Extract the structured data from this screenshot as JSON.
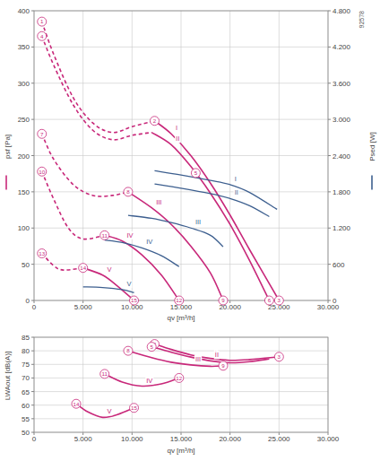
{
  "chart_data": [
    {
      "type": "line",
      "subtitle": "92578",
      "x_label": "qv [m³/h]",
      "y_label": "psf [Pa]",
      "y2_label": "Psed [W]",
      "xlim": [
        0,
        30000
      ],
      "xticks": [
        0,
        {
          "value": 5000,
          "label": "5.000"
        },
        {
          "value": 10000,
          "label": "10.000"
        },
        {
          "value": 15000,
          "label": "15.000"
        },
        {
          "value": 20000,
          "label": "20.000"
        },
        {
          "value": 25000,
          "label": "25.000"
        },
        {
          "value": 30000,
          "label": "30.000"
        }
      ],
      "ylim": [
        0,
        400
      ],
      "yticks": [
        0,
        50,
        100,
        150,
        200,
        250,
        300,
        350,
        400
      ],
      "y2lim": [
        0,
        4800
      ],
      "y2ticks": [
        0,
        600,
        {
          "value": 1200,
          "label": "1.200"
        },
        {
          "value": 1800,
          "label": "1.800"
        },
        {
          "value": 2400,
          "label": "2.400"
        },
        {
          "value": 3000,
          "label": "3.000"
        },
        {
          "value": 3600,
          "label": "3.600"
        },
        {
          "value": 4200,
          "label": "4.200"
        },
        {
          "value": 4800,
          "label": "4.800"
        }
      ],
      "grid": true,
      "series": [
        {
          "x": [
            800,
            2000,
            4000,
            6000,
            8000,
            10000,
            12300
          ],
          "values": [
            385,
            340,
            280,
            245,
            232,
            240,
            248
          ],
          "color": "#c8287a",
          "line_style": "dashed"
        },
        {
          "name": "I",
          "x": [
            12300,
            14000,
            16000,
            18000,
            20000,
            22000,
            25000
          ],
          "values": [
            248,
            230,
            200,
            162,
            118,
            70,
            0
          ],
          "color": "#c8287a",
          "line_style": "solid"
        },
        {
          "x": [
            800,
            2000,
            4000,
            6000,
            8000,
            10000,
            12000
          ],
          "values": [
            365,
            325,
            270,
            235,
            222,
            228,
            232
          ],
          "color": "#c8287a",
          "line_style": "dashed"
        },
        {
          "name": "II",
          "x": [
            12000,
            14000,
            16000,
            18000,
            20000,
            22000,
            24000
          ],
          "values": [
            232,
            215,
            185,
            148,
            105,
            55,
            0
          ],
          "color": "#c8287a",
          "line_style": "solid"
        },
        {
          "x": [
            800,
            2000,
            4000,
            6000,
            8000,
            9600
          ],
          "values": [
            230,
            195,
            160,
            145,
            145,
            150
          ],
          "color": "#c8287a",
          "line_style": "dashed"
        },
        {
          "name": "III",
          "x": [
            9600,
            12000,
            14000,
            16000,
            18000,
            19300
          ],
          "values": [
            150,
            128,
            105,
            75,
            38,
            0
          ],
          "color": "#c8287a",
          "line_style": "solid"
        },
        {
          "x": [
            800,
            2000,
            3500,
            5000,
            7200
          ],
          "values": [
            178,
            140,
            100,
            85,
            90
          ],
          "color": "#c8287a",
          "line_style": "dashed"
        },
        {
          "name": "IV",
          "x": [
            7200,
            9000,
            11000,
            13000,
            14800
          ],
          "values": [
            90,
            82,
            63,
            35,
            0
          ],
          "color": "#c8287a",
          "line_style": "solid"
        },
        {
          "x": [
            800,
            2000,
            3000,
            5000
          ],
          "values": [
            65,
            48,
            42,
            45
          ],
          "color": "#c8287a",
          "line_style": "dashed"
        },
        {
          "name": "V",
          "x": [
            5000,
            7000,
            8500,
            10200
          ],
          "values": [
            45,
            35,
            20,
            0
          ],
          "color": "#c8287a",
          "line_style": "solid"
        },
        {
          "name": "I",
          "axis": "y2",
          "x": [
            12300,
            15000,
            18000,
            20000,
            22000,
            24800
          ],
          "values": [
            2150,
            2080,
            1990,
            1920,
            1790,
            1510
          ],
          "color": "#3d5f8f",
          "line_style": "solid"
        },
        {
          "name": "II",
          "axis": "y2",
          "x": [
            12300,
            15000,
            18000,
            20000,
            22000,
            24000
          ],
          "values": [
            1930,
            1860,
            1770,
            1690,
            1570,
            1390
          ],
          "color": "#3d5f8f",
          "line_style": "solid"
        },
        {
          "name": "III",
          "axis": "y2",
          "x": [
            9600,
            12000,
            14000,
            16000,
            18000,
            19300
          ],
          "values": [
            1410,
            1360,
            1290,
            1200,
            1080,
            890
          ],
          "color": "#3d5f8f",
          "line_style": "solid"
        },
        {
          "name": "IV",
          "axis": "y2",
          "x": [
            7200,
            9000,
            11000,
            13000,
            14800
          ],
          "values": [
            1000,
            960,
            870,
            740,
            560
          ],
          "color": "#3d5f8f",
          "line_style": "solid"
        },
        {
          "name": "V",
          "axis": "y2",
          "x": [
            5000,
            7000,
            9000,
            10200
          ],
          "values": [
            225,
            215,
            180,
            130
          ],
          "color": "#3d5f8f",
          "line_style": "solid"
        }
      ],
      "annotations": [
        {
          "text": "1",
          "x": 800,
          "y": 385
        },
        {
          "text": "2",
          "x": 12300,
          "y": 248
        },
        {
          "text": "3",
          "x": 25000,
          "y": 0
        },
        {
          "text": "4",
          "x": 800,
          "y": 365
        },
        {
          "text": "5",
          "x": 16500,
          "y": 176
        },
        {
          "text": "6",
          "x": 24000,
          "y": 0
        },
        {
          "text": "7",
          "x": 800,
          "y": 230
        },
        {
          "text": "8",
          "x": 9600,
          "y": 150
        },
        {
          "text": "9",
          "x": 19300,
          "y": 0
        },
        {
          "text": "10",
          "x": 800,
          "y": 178
        },
        {
          "text": "11",
          "x": 7200,
          "y": 90
        },
        {
          "text": "12",
          "x": 14800,
          "y": 0
        },
        {
          "text": "13",
          "x": 800,
          "y": 65
        },
        {
          "text": "14",
          "x": 5000,
          "y": 45
        },
        {
          "text": "15",
          "x": 10200,
          "y": 0
        }
      ]
    },
    {
      "type": "line",
      "x_label": "qv [m³/h]",
      "y_label": "LWAout [dB(A)]",
      "xlim": [
        0,
        30000
      ],
      "xticks": [
        0,
        {
          "value": 5000,
          "label": "5.000"
        },
        {
          "value": 10000,
          "label": "10.000"
        },
        {
          "value": 15000,
          "label": "15.000"
        },
        {
          "value": 20000,
          "label": "20.000"
        },
        {
          "value": 25000,
          "label": "25.000"
        },
        {
          "value": 30000,
          "label": "30.000"
        }
      ],
      "ylim": [
        50,
        85
      ],
      "yticks": [
        50,
        55,
        60,
        65,
        70,
        75,
        80,
        85
      ],
      "grid": true,
      "series": [
        {
          "name": "I",
          "x": [
            12300,
            14000,
            16000,
            18000,
            20000,
            22000,
            25000
          ],
          "values": [
            82.5,
            80.5,
            78.5,
            77.2,
            76.5,
            76.8,
            77.8
          ],
          "color": "#c8287a",
          "line_style": "solid"
        },
        {
          "name": "II",
          "x": [
            12000,
            14000,
            16000,
            18000,
            20000,
            22000,
            24000
          ],
          "values": [
            81.5,
            79.5,
            77.7,
            76.3,
            75.6,
            76,
            77
          ],
          "color": "#c8287a",
          "line_style": "solid"
        },
        {
          "name": "III",
          "x": [
            9600,
            12000,
            14000,
            16000,
            18000,
            19300
          ],
          "values": [
            80,
            77.5,
            75.8,
            74.8,
            74.3,
            74.5
          ],
          "color": "#c8287a",
          "line_style": "solid"
        },
        {
          "name": "IV",
          "x": [
            7200,
            9000,
            11000,
            13000,
            14800
          ],
          "values": [
            71.5,
            68.5,
            67,
            67.8,
            70
          ],
          "color": "#c8287a",
          "line_style": "solid"
        },
        {
          "name": "V",
          "x": [
            4300,
            5500,
            7000,
            8500,
            10200
          ],
          "values": [
            60.5,
            57.5,
            55.5,
            56.5,
            59
          ],
          "color": "#c8287a",
          "line_style": "solid"
        }
      ],
      "annotations": [
        {
          "text": "2",
          "x": 12300,
          "y": 82.5
        },
        {
          "text": "5",
          "x": 12000,
          "y": 81.5
        },
        {
          "text": "3",
          "x": 25000,
          "y": 77.8
        },
        {
          "text": "8",
          "x": 9600,
          "y": 80
        },
        {
          "text": "9",
          "x": 19300,
          "y": 74.5
        },
        {
          "text": "11",
          "x": 7200,
          "y": 71.5
        },
        {
          "text": "12",
          "x": 14800,
          "y": 70
        },
        {
          "text": "14",
          "x": 4300,
          "y": 60.5
        },
        {
          "text": "15",
          "x": 10200,
          "y": 59
        }
      ]
    }
  ]
}
